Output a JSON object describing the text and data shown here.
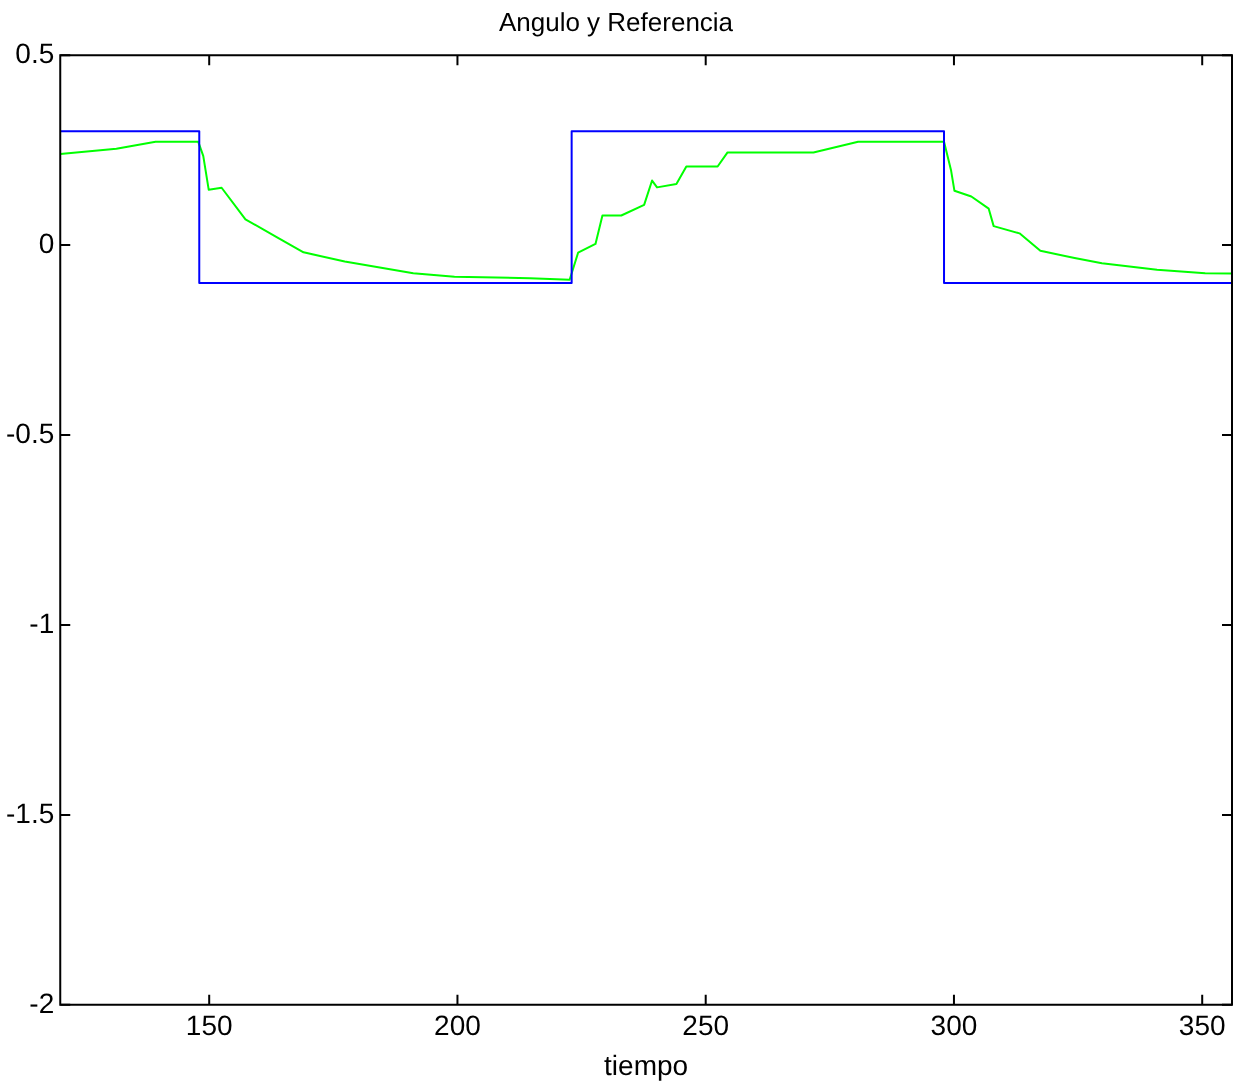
{
  "chart_data": {
    "type": "line",
    "title": "Angulo y Referencia",
    "xlabel": "tiempo",
    "xlim": [
      120,
      356
    ],
    "xticks": [
      150,
      200,
      250,
      300,
      350
    ],
    "ylim": [
      -2,
      0.5
    ],
    "yticks": [
      -2,
      -1.5,
      -1,
      -0.5,
      0,
      0.5
    ],
    "grid": false,
    "legend": false,
    "marker": "none",
    "line_style": "solid",
    "series": [
      {
        "color": "#0000ff",
        "x": [
          120,
          148,
          148,
          223,
          223,
          298,
          298,
          356
        ],
        "values": [
          0.3,
          0.3,
          -0.1,
          -0.1,
          0.3,
          0.3,
          -0.1,
          -0.1
        ]
      },
      {
        "color": "#00ff00",
        "x": [
          120,
          131.3,
          139.2,
          147.8,
          148.8,
          149.9,
          152.5,
          157.3,
          163.5,
          169,
          177.3,
          191.1,
          199.4,
          214.6,
          222.6,
          224.3,
          227.8,
          229.2,
          233,
          237.6,
          239.2,
          240.2,
          244.1,
          246.1,
          252.4,
          254.4,
          271.7,
          280.7,
          298,
          299.4,
          300.1,
          303.5,
          307,
          308,
          313.2,
          317.4,
          324.3,
          329.8,
          340.9,
          350.6,
          356
        ],
        "values": [
          0.24,
          0.254,
          0.272,
          0.272,
          0.235,
          0.146,
          0.151,
          0.068,
          0.022,
          -0.019,
          -0.043,
          -0.074,
          -0.083,
          -0.087,
          -0.091,
          -0.02,
          0.003,
          0.078,
          0.078,
          0.106,
          0.17,
          0.152,
          0.161,
          0.207,
          0.207,
          0.244,
          0.244,
          0.272,
          0.272,
          0.198,
          0.143,
          0.128,
          0.096,
          0.05,
          0.031,
          -0.015,
          -0.034,
          -0.048,
          -0.065,
          -0.074,
          -0.075
        ]
      }
    ]
  }
}
